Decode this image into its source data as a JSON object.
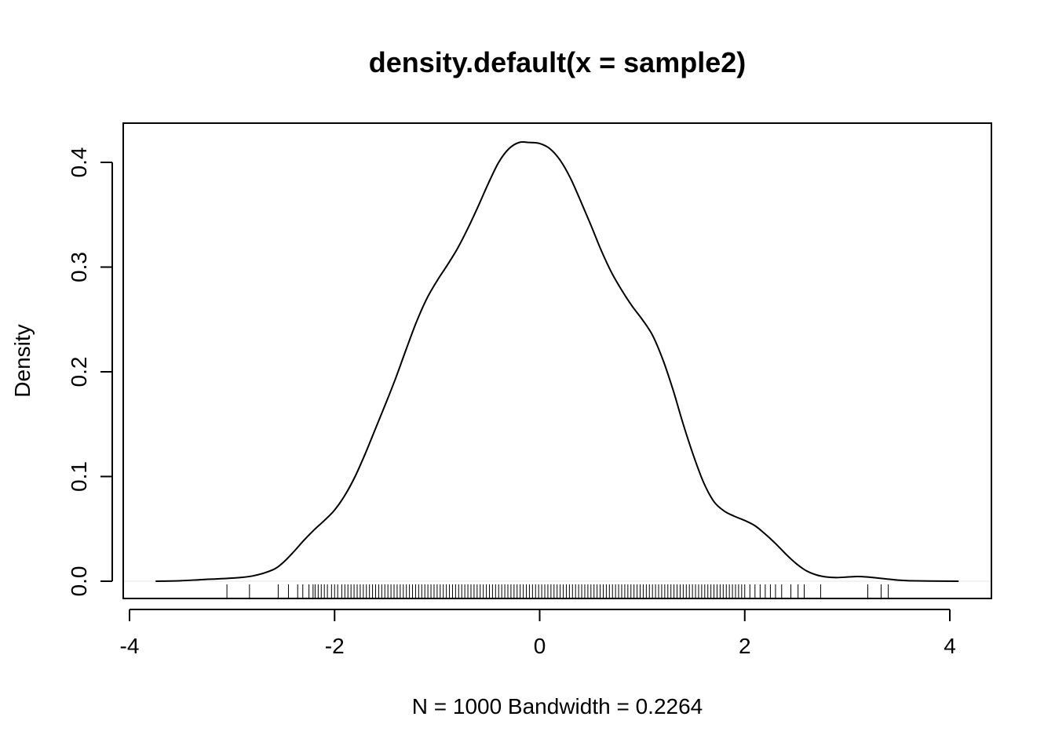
{
  "chart_data": {
    "type": "line",
    "title": "density.default(x = sample2)",
    "xlabel": "N = 1000   Bandwidth = 0.2264",
    "ylabel": "Density",
    "xlim": [
      -4,
      4
    ],
    "ylim": [
      0,
      0.4
    ],
    "x_ticks": [
      -4,
      -2,
      0,
      2,
      4
    ],
    "x_tick_labels": [
      "-4",
      "-2",
      "0",
      "2",
      "4"
    ],
    "y_ticks": [
      0,
      0.1,
      0.2,
      0.3,
      0.4
    ],
    "y_tick_labels": [
      "0.0",
      "0.1",
      "0.2",
      "0.3",
      "0.4"
    ],
    "grid": false,
    "legend": "none",
    "line_color": "#000000",
    "baseline": 0,
    "series": [
      {
        "x": [
          -3.74,
          -3.5,
          -3.3,
          -3.0,
          -2.8,
          -2.6,
          -2.5,
          -2.4,
          -2.3,
          -2.2,
          -2.1,
          -2.0,
          -1.9,
          -1.8,
          -1.7,
          -1.6,
          -1.5,
          -1.4,
          -1.3,
          -1.2,
          -1.1,
          -1.0,
          -0.9,
          -0.8,
          -0.7,
          -0.6,
          -0.5,
          -0.4,
          -0.3,
          -0.2,
          -0.1,
          0.0,
          0.1,
          0.2,
          0.3,
          0.4,
          0.5,
          0.6,
          0.7,
          0.8,
          0.9,
          1.0,
          1.1,
          1.2,
          1.3,
          1.4,
          1.5,
          1.6,
          1.7,
          1.8,
          1.9,
          2.0,
          2.1,
          2.2,
          2.3,
          2.4,
          2.5,
          2.6,
          2.7,
          2.8,
          2.9,
          3.0,
          3.1,
          3.2,
          3.3,
          3.4,
          3.5,
          3.6,
          3.8,
          4.08
        ],
        "y": [
          0.0,
          0.0005,
          0.0015,
          0.003,
          0.005,
          0.011,
          0.018,
          0.028,
          0.039,
          0.049,
          0.058,
          0.068,
          0.082,
          0.1,
          0.122,
          0.146,
          0.17,
          0.195,
          0.222,
          0.248,
          0.27,
          0.287,
          0.302,
          0.318,
          0.337,
          0.358,
          0.38,
          0.4,
          0.413,
          0.419,
          0.419,
          0.418,
          0.413,
          0.402,
          0.385,
          0.363,
          0.34,
          0.316,
          0.295,
          0.278,
          0.263,
          0.25,
          0.235,
          0.212,
          0.183,
          0.15,
          0.12,
          0.094,
          0.076,
          0.067,
          0.062,
          0.058,
          0.053,
          0.045,
          0.036,
          0.026,
          0.017,
          0.01,
          0.006,
          0.004,
          0.0035,
          0.004,
          0.0045,
          0.004,
          0.003,
          0.002,
          0.001,
          0.0005,
          0.0002,
          0.0
        ]
      }
    ],
    "rug": [
      -3.05,
      -2.83,
      -2.55,
      -2.45,
      -2.36,
      -2.31,
      -2.25,
      -2.21,
      -2.19,
      -2.16,
      -2.13,
      -2.1,
      -2.07,
      -2.03,
      -2.0,
      -1.97,
      -1.93,
      -1.9,
      -1.87,
      -1.84,
      -1.81,
      -1.78,
      -1.75,
      -1.72,
      -1.69,
      -1.66,
      -1.63,
      -1.6,
      -1.57,
      -1.54,
      -1.51,
      -1.48,
      -1.45,
      -1.42,
      -1.39,
      -1.36,
      -1.33,
      -1.3,
      -1.27,
      -1.24,
      -1.21,
      -1.18,
      -1.15,
      -1.12,
      -1.09,
      -1.06,
      -1.03,
      -1.0,
      -0.97,
      -0.94,
      -0.91,
      -0.88,
      -0.85,
      -0.82,
      -0.79,
      -0.76,
      -0.73,
      -0.7,
      -0.67,
      -0.64,
      -0.61,
      -0.58,
      -0.55,
      -0.52,
      -0.49,
      -0.46,
      -0.43,
      -0.4,
      -0.37,
      -0.34,
      -0.31,
      -0.28,
      -0.25,
      -0.22,
      -0.19,
      -0.16,
      -0.13,
      -0.1,
      -0.07,
      -0.04,
      -0.01,
      0.02,
      0.05,
      0.08,
      0.11,
      0.14,
      0.17,
      0.2,
      0.23,
      0.26,
      0.29,
      0.32,
      0.35,
      0.38,
      0.41,
      0.44,
      0.47,
      0.5,
      0.53,
      0.56,
      0.59,
      0.62,
      0.65,
      0.68,
      0.71,
      0.74,
      0.77,
      0.8,
      0.83,
      0.86,
      0.89,
      0.92,
      0.95,
      0.98,
      1.01,
      1.04,
      1.07,
      1.1,
      1.13,
      1.16,
      1.19,
      1.22,
      1.25,
      1.28,
      1.31,
      1.34,
      1.37,
      1.4,
      1.43,
      1.46,
      1.49,
      1.52,
      1.55,
      1.58,
      1.61,
      1.64,
      1.67,
      1.7,
      1.73,
      1.76,
      1.79,
      1.82,
      1.85,
      1.88,
      1.91,
      1.94,
      1.97,
      2.0,
      2.05,
      2.1,
      2.15,
      2.2,
      2.25,
      2.3,
      2.36,
      2.45,
      2.52,
      2.58,
      2.74,
      3.2,
      3.33,
      3.4
    ]
  }
}
